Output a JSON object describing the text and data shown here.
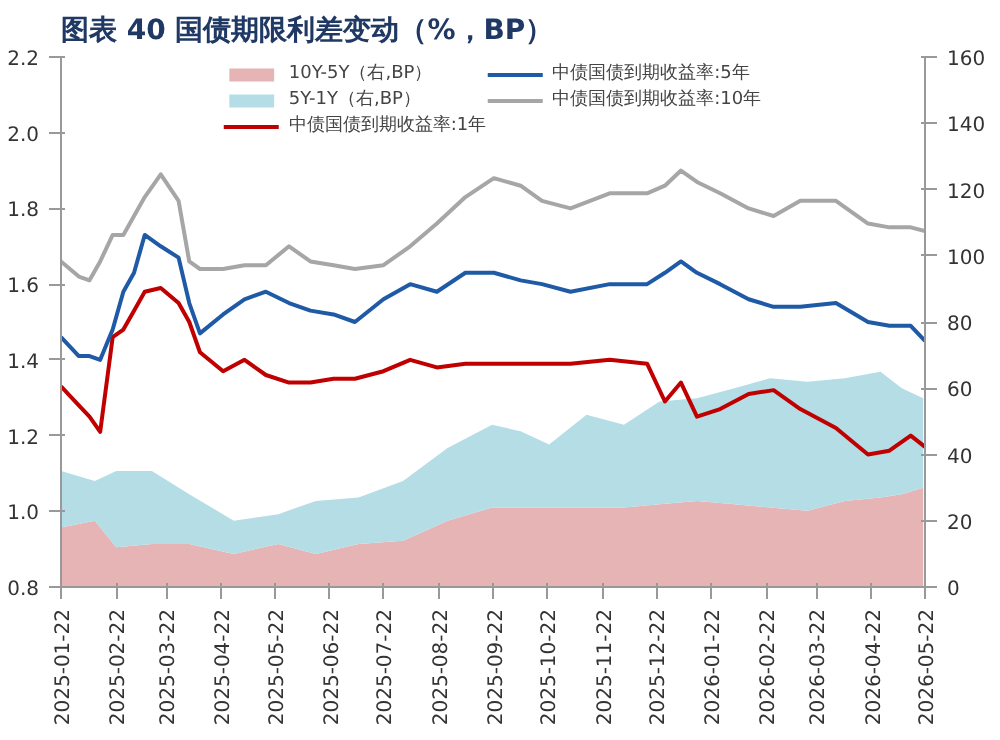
{
  "chart_data": {
    "type": "line",
    "title": "图表 40  国债期限利差变动（%，BP）",
    "xlim": [
      "2025-01-22",
      "2026-05-22"
    ],
    "xticks": [
      "2025-01-22",
      "2025-02-22",
      "2025-03-22",
      "2025-04-22",
      "2025-05-22",
      "2025-06-22",
      "2025-07-22",
      "2025-08-22",
      "2025-09-22",
      "2025-10-22",
      "2025-11-22",
      "2025-12-22",
      "2026-01-22",
      "2026-02-22",
      "2026-03-22",
      "2026-04-22",
      "2026-05-22"
    ],
    "ylim": [
      0.8,
      2.2
    ],
    "yticks": [
      {
        "value": 0.8,
        "label": "0.8"
      },
      {
        "value": 1.0,
        "label": "1.0"
      },
      {
        "value": 1.2,
        "label": "1.2"
      },
      {
        "value": 1.4,
        "label": "1.4"
      },
      {
        "value": 1.6,
        "label": "1.6"
      },
      {
        "value": 1.8,
        "label": "1.8"
      },
      {
        "value": 2.0,
        "label": "2.0"
      },
      {
        "value": 2.2,
        "label": "2.2"
      }
    ],
    "y2lim": [
      0,
      160
    ],
    "y2ticks": [
      0,
      20,
      40,
      60,
      80,
      100,
      120,
      140,
      160
    ],
    "stacked": true,
    "grid": false,
    "legend": "top",
    "series": [
      {
        "name": "10Y-5Y（右,BP）",
        "type": "area",
        "axis": "y2",
        "color": "#e6b4b4",
        "x": [
          "2025-01-22",
          "2025-02-10",
          "2025-02-22",
          "2025-03-14",
          "2025-04-04",
          "2025-04-29",
          "2025-05-24",
          "2025-06-14",
          "2025-07-08",
          "2025-08-02",
          "2025-08-27",
          "2025-09-21",
          "2025-10-07",
          "2025-10-23",
          "2025-11-13",
          "2025-12-04",
          "2025-12-24",
          "2026-01-14",
          "2026-02-04",
          "2026-02-24",
          "2026-03-17",
          "2026-04-07",
          "2026-04-27",
          "2026-05-09",
          "2026-05-21"
        ],
        "values": [
          18,
          20,
          12,
          13,
          13,
          10,
          13,
          10,
          13,
          14,
          20,
          24,
          24,
          24,
          24,
          24,
          25,
          26,
          25,
          24,
          23,
          26,
          27,
          28,
          30
        ]
      },
      {
        "name": "5Y-1Y（右,BP）",
        "type": "area",
        "axis": "y2",
        "color": "#b4dde6",
        "x": [
          "2025-01-22",
          "2025-02-10",
          "2025-02-22",
          "2025-03-14",
          "2025-04-04",
          "2025-04-29",
          "2025-05-24",
          "2025-06-14",
          "2025-07-08",
          "2025-08-02",
          "2025-08-27",
          "2025-09-21",
          "2025-10-07",
          "2025-10-23",
          "2025-11-13",
          "2025-12-04",
          "2025-12-24",
          "2026-01-14",
          "2026-02-04",
          "2026-02-24",
          "2026-03-17",
          "2026-04-07",
          "2026-04-27",
          "2026-05-09",
          "2026-05-21"
        ],
        "values": [
          17,
          12,
          23,
          22,
          15,
          10,
          9,
          16,
          14,
          18,
          22,
          25,
          23,
          19,
          28,
          25,
          31,
          31,
          35,
          39,
          39,
          37,
          38,
          32,
          27
        ]
      },
      {
        "name": "中债国债到期收益率:1年",
        "color": "#c00000",
        "x": [
          "2025-01-22",
          "2025-02-01",
          "2025-02-07",
          "2025-02-13",
          "2025-02-20",
          "2025-02-26",
          "2025-03-04",
          "2025-03-10",
          "2025-03-19",
          "2025-03-29",
          "2025-04-04",
          "2025-04-10",
          "2025-04-23",
          "2025-05-05",
          "2025-05-17",
          "2025-05-30",
          "2025-06-11",
          "2025-06-24",
          "2025-07-06",
          "2025-07-22",
          "2025-08-06",
          "2025-08-21",
          "2025-09-06",
          "2025-09-22",
          "2025-10-07",
          "2025-10-19",
          "2025-11-04",
          "2025-11-26",
          "2025-12-17",
          "2025-12-27",
          "2026-01-05",
          "2026-01-14",
          "2026-01-27",
          "2026-02-12",
          "2026-02-26",
          "2026-03-13",
          "2026-04-02",
          "2026-04-20",
          "2026-05-02",
          "2026-05-14",
          "2026-05-22"
        ],
        "values": [
          1.33,
          1.28,
          1.25,
          1.21,
          1.46,
          1.48,
          1.53,
          1.58,
          1.59,
          1.55,
          1.5,
          1.42,
          1.37,
          1.4,
          1.36,
          1.34,
          1.34,
          1.35,
          1.35,
          1.37,
          1.4,
          1.38,
          1.39,
          1.39,
          1.39,
          1.39,
          1.39,
          1.4,
          1.39,
          1.29,
          1.34,
          1.25,
          1.27,
          1.31,
          1.32,
          1.27,
          1.22,
          1.15,
          1.16,
          1.2,
          1.17
        ]
      },
      {
        "name": "中债国债到期收益率:5年",
        "color": "#1f5aa6",
        "x": [
          "2025-01-22",
          "2025-02-01",
          "2025-02-07",
          "2025-02-13",
          "2025-02-20",
          "2025-02-26",
          "2025-03-04",
          "2025-03-10",
          "2025-03-19",
          "2025-03-29",
          "2025-04-04",
          "2025-04-10",
          "2025-04-23",
          "2025-05-05",
          "2025-05-17",
          "2025-05-30",
          "2025-06-11",
          "2025-06-24",
          "2025-07-06",
          "2025-07-22",
          "2025-08-06",
          "2025-08-21",
          "2025-09-06",
          "2025-09-22",
          "2025-10-07",
          "2025-10-19",
          "2025-11-04",
          "2025-11-26",
          "2025-12-17",
          "2025-12-27",
          "2026-01-05",
          "2026-01-14",
          "2026-01-27",
          "2026-02-12",
          "2026-02-26",
          "2026-03-13",
          "2026-04-02",
          "2026-04-20",
          "2026-05-02",
          "2026-05-14",
          "2026-05-22"
        ],
        "values": [
          1.46,
          1.41,
          1.41,
          1.4,
          1.48,
          1.58,
          1.63,
          1.73,
          1.7,
          1.67,
          1.55,
          1.47,
          1.52,
          1.56,
          1.58,
          1.55,
          1.53,
          1.52,
          1.5,
          1.56,
          1.6,
          1.58,
          1.63,
          1.63,
          1.61,
          1.6,
          1.58,
          1.6,
          1.6,
          1.63,
          1.66,
          1.63,
          1.6,
          1.56,
          1.54,
          1.54,
          1.55,
          1.5,
          1.49,
          1.49,
          1.45
        ]
      },
      {
        "name": "中债国债到期收益率:10年",
        "color": "#a6a6a6",
        "x": [
          "2025-01-22",
          "2025-02-01",
          "2025-02-07",
          "2025-02-13",
          "2025-02-20",
          "2025-02-26",
          "2025-03-04",
          "2025-03-10",
          "2025-03-19",
          "2025-03-29",
          "2025-04-04",
          "2025-04-10",
          "2025-04-23",
          "2025-05-05",
          "2025-05-17",
          "2025-05-30",
          "2025-06-11",
          "2025-06-24",
          "2025-07-06",
          "2025-07-22",
          "2025-08-06",
          "2025-08-21",
          "2025-09-06",
          "2025-09-22",
          "2025-10-07",
          "2025-10-19",
          "2025-11-04",
          "2025-11-26",
          "2025-12-17",
          "2025-12-27",
          "2026-01-05",
          "2026-01-14",
          "2026-01-27",
          "2026-02-12",
          "2026-02-26",
          "2026-03-13",
          "2026-04-02",
          "2026-04-20",
          "2026-05-02",
          "2026-05-14",
          "2026-05-22"
        ],
        "values": [
          1.66,
          1.62,
          1.61,
          1.66,
          1.73,
          1.73,
          1.78,
          1.83,
          1.89,
          1.82,
          1.66,
          1.64,
          1.64,
          1.65,
          1.65,
          1.7,
          1.66,
          1.65,
          1.64,
          1.65,
          1.7,
          1.76,
          1.83,
          1.88,
          1.86,
          1.82,
          1.8,
          1.84,
          1.84,
          1.86,
          1.9,
          1.87,
          1.84,
          1.8,
          1.78,
          1.82,
          1.82,
          1.76,
          1.75,
          1.75,
          1.74
        ]
      }
    ]
  }
}
